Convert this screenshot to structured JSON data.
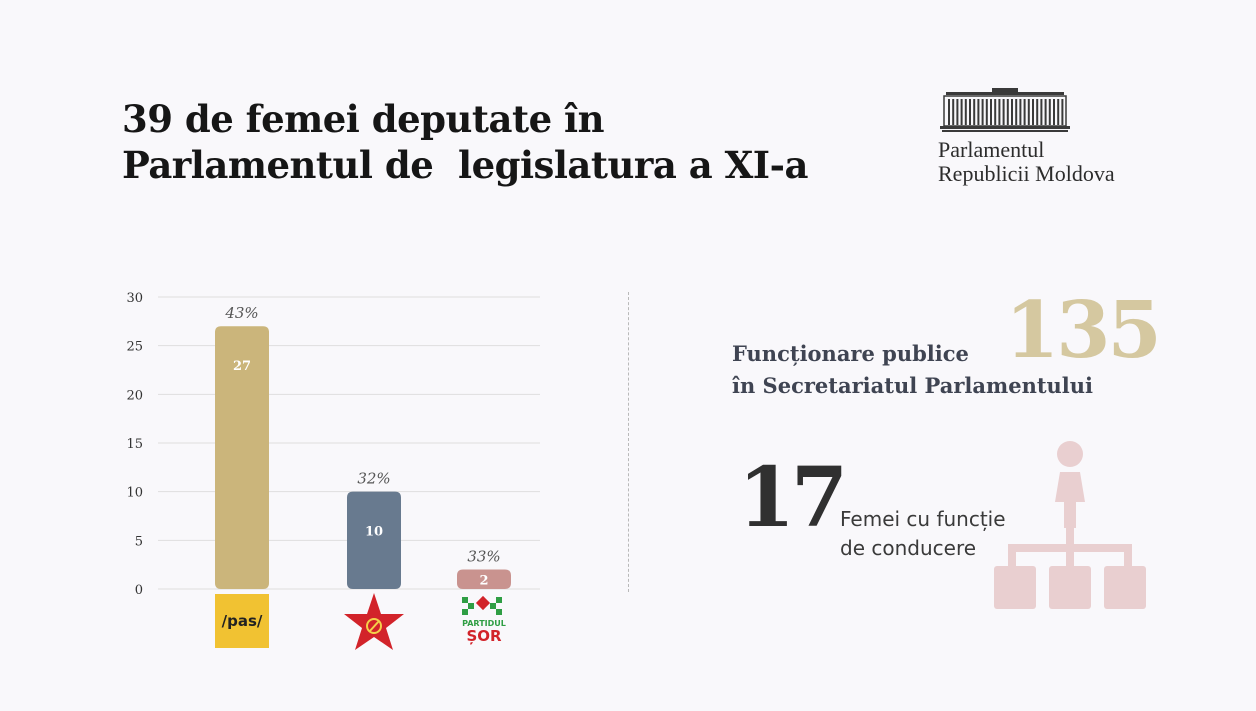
{
  "header": {
    "title_line1": "39 de femei deputate în",
    "title_line2": "Parlamentul de  legislatura a XI-a"
  },
  "logo": {
    "name_line1": "Parlamentul",
    "name_line2": "Republicii Moldova",
    "icon": "parliament-building-icon"
  },
  "chart_data": {
    "type": "bar",
    "categories": [
      "/pas/",
      "",
      "PARTIDUL ȘOR"
    ],
    "values": [
      27,
      10,
      2
    ],
    "percent_labels": [
      "43%",
      "32%",
      "33%"
    ],
    "value_labels": [
      "27",
      "10",
      "2"
    ],
    "colors": [
      "#cbb57b",
      "#687a8f",
      "#c9938f"
    ],
    "yticks": [
      0,
      5,
      10,
      15,
      20,
      25,
      30
    ],
    "ylim": [
      0,
      30
    ],
    "grid": true,
    "legend": "none",
    "category_icons": [
      "pas-logo-icon",
      "red-star-hammer-sickle-icon",
      "partidul-sor-logo-icon"
    ]
  },
  "stats": {
    "civil_servants_value": "135",
    "civil_servants_line1": "Funcționare publice",
    "civil_servants_line2": "în Secretariatul Parlamentului",
    "leaders_value": "17",
    "leaders_line1": "Femei cu funcție",
    "leaders_line2": "de conducere",
    "leaders_icon": "org-chart-person-icon",
    "icon_color": "#e9cfd0",
    "big_number_color": "#d5c8a0"
  }
}
